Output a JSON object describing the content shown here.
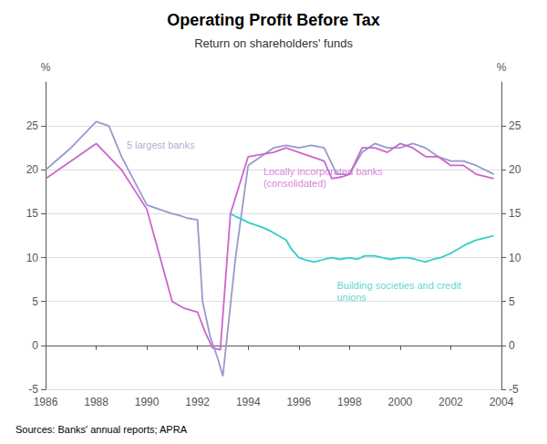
{
  "chart_data": {
    "type": "line",
    "title": "Operating Profit Before Tax",
    "subtitle": "Return on shareholders' funds",
    "source": "Sources: Banks' annual reports; APRA",
    "ylabel": "%",
    "y2label": "%",
    "xlim": [
      1986,
      2004
    ],
    "xticks": [
      1986,
      1988,
      1990,
      1992,
      1994,
      1996,
      1998,
      2000,
      2002,
      2004
    ],
    "ylim": [
      -5,
      30
    ],
    "yticks": [
      -5,
      0,
      5,
      10,
      15,
      20,
      25
    ],
    "y2lim": [
      -5,
      30
    ],
    "y2ticks": [
      -5,
      0,
      5,
      10,
      15,
      20,
      25
    ],
    "grid": true,
    "series": [
      {
        "name": "5 largest banks",
        "color": "#9999cc",
        "x": [
          1986,
          1987,
          1988,
          1988.5,
          1989,
          1990,
          1990.5,
          1991,
          1991.3,
          1991.6,
          1992,
          1992.2,
          1992.5,
          1992.8,
          1993.0,
          1993.5,
          1994,
          1995,
          1995.5,
          1996,
          1996.5,
          1997,
          1997.5,
          1998,
          1998.5,
          1999,
          1999.5,
          2000,
          2000.5,
          2001,
          2001.5,
          2002,
          2002.5,
          2003,
          2003.7
        ],
        "values": [
          20.0,
          22.5,
          25.5,
          25.0,
          21.5,
          16.0,
          15.5,
          15.0,
          14.8,
          14.5,
          14.3,
          5.0,
          1.0,
          -1.5,
          -3.5,
          10.0,
          20.5,
          22.5,
          22.8,
          22.5,
          22.8,
          22.5,
          19.5,
          19.5,
          22.0,
          23.0,
          22.5,
          22.5,
          23.0,
          22.5,
          21.5,
          21.0,
          21.0,
          20.5,
          19.5
        ]
      },
      {
        "name": "Locally incorporated banks\n(consolidated)",
        "color": "#cc66cc",
        "x": [
          1986,
          1987,
          1988,
          1989,
          1990,
          1991,
          1991.5,
          1992,
          1992.3,
          1992.6,
          1992.9,
          1993.3,
          1994,
          1995,
          1995.5,
          1996,
          1996.5,
          1997,
          1997.3,
          1997.7,
          1998,
          1998.5,
          1999,
          1999.5,
          2000,
          2000.5,
          2001,
          2001.5,
          2002,
          2002.5,
          2003,
          2003.7
        ],
        "values": [
          19.0,
          21.0,
          23.0,
          20.0,
          15.5,
          5.0,
          4.2,
          3.8,
          1.5,
          -0.3,
          -0.5,
          15.0,
          21.5,
          22.0,
          22.5,
          22.0,
          21.5,
          21.0,
          19.0,
          19.2,
          19.5,
          22.5,
          22.5,
          22.0,
          23.0,
          22.5,
          21.5,
          21.5,
          20.5,
          20.5,
          19.5,
          19.0
        ]
      },
      {
        "name": "Building societies and credit\nunions",
        "color": "#33cccc",
        "x": [
          1993.3,
          1993.5,
          1993.8,
          1994,
          1994.3,
          1994.6,
          1994.9,
          1995.2,
          1995.5,
          1995.7,
          1996,
          1996.3,
          1996.6,
          1997,
          1997.3,
          1997.6,
          1998,
          1998.3,
          1998.6,
          1999,
          1999.3,
          1999.6,
          2000,
          2000.3,
          2000.6,
          2001,
          2001.3,
          2001.6,
          2002,
          2002.3,
          2002.6,
          2003,
          2003.3,
          2003.7
        ],
        "values": [
          15.0,
          14.7,
          14.3,
          14.0,
          13.7,
          13.4,
          13.0,
          12.5,
          12.0,
          11.0,
          10.0,
          9.7,
          9.5,
          9.8,
          10.0,
          9.8,
          10.0,
          9.8,
          10.2,
          10.2,
          10.0,
          9.8,
          10.0,
          10.0,
          9.8,
          9.5,
          9.8,
          10.0,
          10.5,
          11.0,
          11.5,
          12.0,
          12.2,
          12.5
        ]
      }
    ],
    "annotations": [
      {
        "text": "5 largest banks",
        "x": 1989.2,
        "y": 23.5,
        "color": "#9999cc"
      },
      {
        "text": "Locally incorporated banks\n(consolidated)",
        "x": 1994.6,
        "y": 20.5,
        "color": "#cc66cc"
      },
      {
        "text": "Building societies and credit\nunions",
        "x": 1997.5,
        "y": 7.5,
        "color": "#33cccc"
      }
    ]
  }
}
